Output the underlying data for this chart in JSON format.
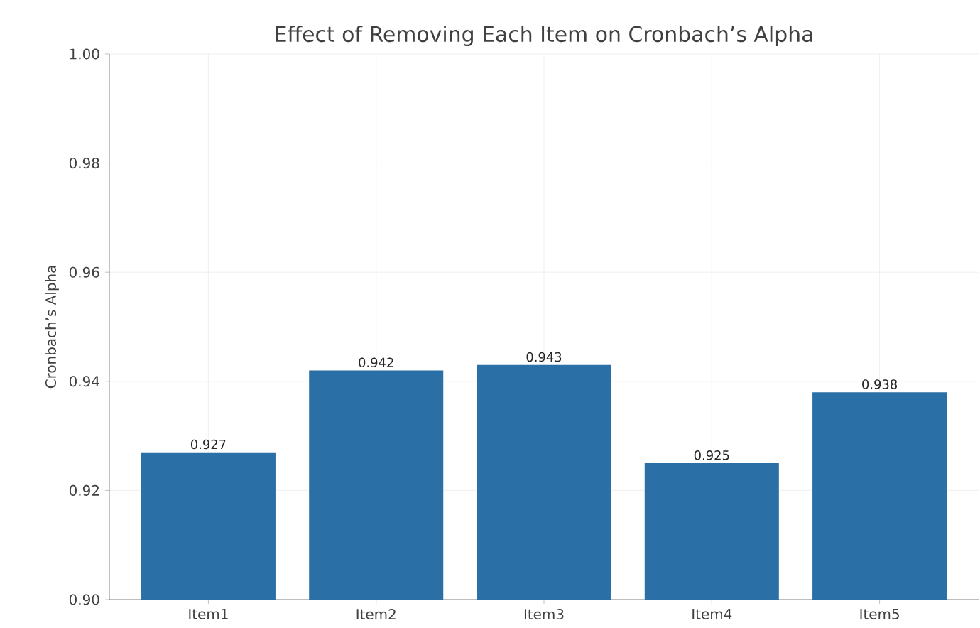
{
  "chart_data": {
    "type": "bar",
    "title": "Effect of Removing Each Item on Cronbach’s Alpha",
    "ylabel": "Cronbach’s Alpha",
    "categories": [
      "Item1",
      "Item2",
      "Item3",
      "Item4",
      "Item5"
    ],
    "values": [
      0.927,
      0.942,
      0.943,
      0.925,
      0.938
    ],
    "color": "#2a6fa5",
    "ylim": [
      0.9,
      1.0
    ],
    "yticks": [
      {
        "value": 0.9,
        "label": "0.90"
      },
      0.92,
      0.94,
      0.96,
      0.98,
      {
        "value": 1.0,
        "label": "1.00"
      }
    ],
    "grid": true,
    "data_labels": true
  }
}
